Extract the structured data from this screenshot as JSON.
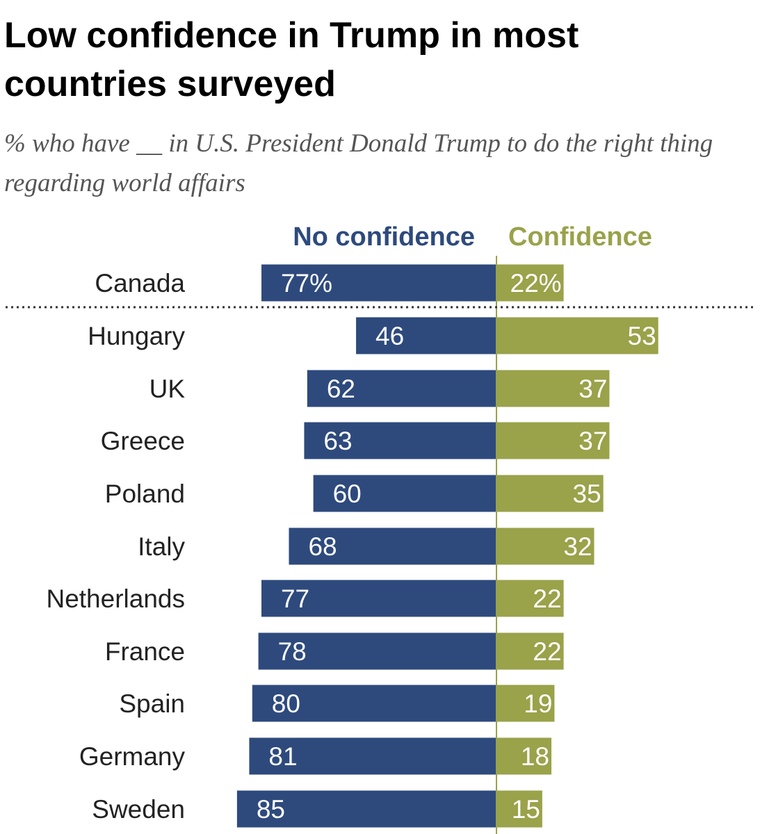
{
  "title": "Low confidence in Trump in most countries surveyed",
  "subtitle": "% who have __ in U.S. President Donald Trump to do the right thing regarding world affairs",
  "colors": {
    "no_confidence": "#2E4A7D",
    "confidence": "#9AA24A",
    "label_text": "#222222",
    "bar_text": "#ffffff"
  },
  "chart_data": {
    "type": "bar",
    "orientation": "horizontal-diverging",
    "categories": [
      "Canada",
      "Hungary",
      "UK",
      "Greece",
      "Poland",
      "Italy",
      "Netherlands",
      "France",
      "Spain",
      "Germany",
      "Sweden"
    ],
    "series": [
      {
        "name": "No confidence",
        "values": [
          77,
          46,
          62,
          63,
          60,
          68,
          77,
          78,
          80,
          81,
          85
        ],
        "labels": [
          "77%",
          "46",
          "62",
          "63",
          "60",
          "68",
          "77",
          "78",
          "80",
          "81",
          "85"
        ]
      },
      {
        "name": "Confidence",
        "values": [
          22,
          53,
          37,
          37,
          35,
          32,
          22,
          22,
          19,
          18,
          15
        ],
        "labels": [
          "22%",
          "53",
          "37",
          "37",
          "35",
          "32",
          "22",
          "22",
          "19",
          "18",
          "15"
        ]
      }
    ],
    "separator_after": "Canada",
    "legend": "top"
  }
}
